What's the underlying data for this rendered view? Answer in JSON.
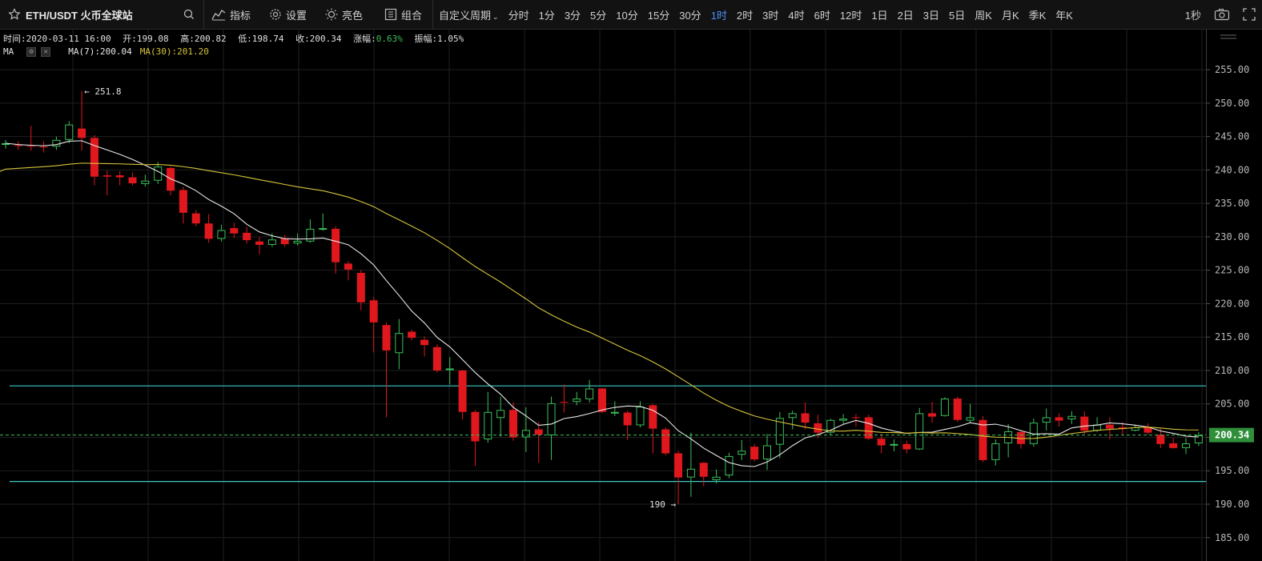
{
  "toolbar": {
    "symbol": "ETH/USDT 火币全球站",
    "indicator_label": "指标",
    "settings_label": "设置",
    "bright_label": "亮色",
    "combo_label": "组合",
    "custom_period_label": "自定义周期",
    "intervals": [
      "分时",
      "1分",
      "3分",
      "5分",
      "10分",
      "15分",
      "30分",
      "1时",
      "2时",
      "3时",
      "4时",
      "6时",
      "12时",
      "1日",
      "2日",
      "3日",
      "5日",
      "周K",
      "月K",
      "季K",
      "年K"
    ],
    "active_interval": "1时",
    "refresh_label": "1秒"
  },
  "info": {
    "time": "时间:2020-03-11 16:00",
    "open": "开:199.08",
    "high": "高:200.82",
    "low": "低:198.74",
    "close": "收:200.34",
    "change_label": "涨幅:",
    "change_value": "0.63%",
    "amplitude": "振幅:1.05%"
  },
  "ma_legend": {
    "label": "MA",
    "ma7": "MA(7):200.04",
    "ma30": "MA(30):201.20"
  },
  "colors": {
    "up": "#3bbf5a",
    "down": "#e0181e",
    "ma7": "#e8e8e8",
    "ma30": "#d6c43a",
    "hline": "#3ec9c9",
    "grid": "#1f1f1f",
    "price_tag": "#2f8f3a"
  },
  "chart_data": {
    "type": "candlestick",
    "yticks": [
      185,
      190,
      195,
      200,
      205,
      210,
      215,
      220,
      225,
      230,
      235,
      240,
      245,
      250,
      255
    ],
    "ylim": [
      181.5,
      261.0
    ],
    "last_price": "200.34",
    "high_marker": "251.8",
    "low_marker": "190",
    "horizontal_lines": [
      207.7,
      193.4
    ],
    "candles": [
      [
        243.8,
        244.0,
        244.5,
        243.2
      ],
      [
        243.7,
        243.6,
        244.3,
        243.0
      ],
      [
        243.6,
        243.5,
        246.6,
        242.9
      ],
      [
        243.5,
        243.4,
        244.3,
        242.6
      ],
      [
        243.5,
        244.5,
        245.0,
        243.0
      ],
      [
        244.5,
        246.8,
        247.3,
        244.0
      ],
      [
        246.2,
        244.8,
        251.8,
        242.9
      ],
      [
        244.8,
        239.0,
        245.2,
        237.7
      ],
      [
        239.2,
        239.0,
        239.9,
        236.2
      ],
      [
        239.2,
        238.9,
        239.8,
        237.7
      ],
      [
        238.9,
        238.0,
        239.6,
        237.7
      ],
      [
        237.9,
        238.4,
        239.3,
        237.5
      ],
      [
        238.4,
        240.5,
        241.2,
        237.9
      ],
      [
        240.3,
        236.9,
        240.5,
        236.2
      ],
      [
        237.0,
        233.6,
        237.5,
        232.0
      ],
      [
        233.5,
        232.0,
        234.0,
        231.6
      ],
      [
        232.0,
        229.7,
        233.4,
        229.1
      ],
      [
        229.7,
        231.0,
        231.8,
        229.3
      ],
      [
        231.3,
        230.5,
        232.1,
        229.8
      ],
      [
        230.6,
        229.5,
        231.5,
        229.0
      ],
      [
        229.3,
        228.8,
        230.0,
        227.4
      ],
      [
        228.8,
        229.6,
        230.5,
        228.5
      ],
      [
        229.8,
        228.9,
        230.3,
        228.5
      ],
      [
        229.0,
        229.4,
        230.5,
        228.7
      ],
      [
        229.3,
        231.2,
        232.6,
        229.1
      ],
      [
        231.3,
        231.3,
        233.5,
        230.9
      ],
      [
        231.2,
        226.2,
        231.6,
        224.5
      ],
      [
        226.0,
        225.1,
        226.4,
        223.5
      ],
      [
        224.6,
        220.2,
        225.0,
        219.0
      ],
      [
        220.5,
        217.2,
        221.0,
        212.7
      ],
      [
        216.8,
        213.0,
        217.2,
        203.0
      ],
      [
        212.6,
        215.6,
        217.7,
        210.2
      ],
      [
        215.8,
        214.9,
        216.1,
        214.5
      ],
      [
        214.6,
        213.8,
        215.1,
        212.1
      ],
      [
        213.5,
        210.0,
        213.9,
        209.7
      ],
      [
        210.1,
        210.3,
        212.0,
        207.9
      ],
      [
        210.0,
        203.8,
        210.1,
        202.7
      ],
      [
        203.8,
        199.4,
        204.1,
        195.7
      ],
      [
        199.7,
        203.8,
        206.8,
        199.2
      ],
      [
        202.9,
        204.1,
        206.1,
        200.1
      ],
      [
        204.1,
        200.0,
        205.2,
        199.5
      ],
      [
        200.0,
        201.1,
        204.5,
        197.8
      ],
      [
        201.2,
        200.4,
        202.3,
        196.2
      ],
      [
        200.3,
        205.1,
        206.1,
        196.6
      ],
      [
        205.3,
        205.2,
        207.9,
        203.7
      ],
      [
        205.3,
        205.8,
        206.8,
        204.8
      ],
      [
        205.7,
        207.3,
        208.6,
        205.2
      ],
      [
        207.3,
        203.8,
        207.4,
        203.6
      ],
      [
        203.7,
        203.8,
        205.4,
        203.2
      ],
      [
        203.7,
        201.8,
        204.0,
        199.6
      ],
      [
        201.8,
        204.6,
        205.4,
        201.5
      ],
      [
        204.8,
        201.3,
        205.0,
        197.6
      ],
      [
        201.2,
        197.6,
        201.5,
        197.3
      ],
      [
        197.6,
        194.0,
        198.0,
        190.0
      ],
      [
        194.0,
        195.3,
        200.7,
        191.1
      ],
      [
        196.2,
        194.1,
        196.3,
        192.7
      ],
      [
        193.6,
        194.1,
        195.2,
        193.1
      ],
      [
        194.3,
        197.2,
        197.7,
        193.9
      ],
      [
        197.4,
        198.0,
        199.6,
        196.6
      ],
      [
        198.6,
        196.7,
        199.0,
        196.4
      ],
      [
        196.7,
        198.8,
        200.5,
        195.1
      ],
      [
        198.9,
        202.9,
        203.8,
        196.9
      ],
      [
        202.9,
        203.6,
        204.0,
        201.2
      ],
      [
        203.6,
        202.2,
        205.2,
        201.2
      ],
      [
        202.1,
        200.7,
        203.4,
        199.9
      ],
      [
        200.7,
        202.6,
        202.8,
        200.3
      ],
      [
        202.5,
        202.8,
        203.5,
        201.9
      ],
      [
        203.0,
        202.9,
        203.5,
        201.6
      ],
      [
        203.0,
        199.8,
        203.4,
        199.6
      ],
      [
        199.8,
        198.8,
        200.5,
        197.6
      ],
      [
        198.8,
        199.0,
        199.7,
        197.9
      ],
      [
        199.0,
        198.2,
        199.5,
        197.6
      ],
      [
        198.2,
        203.6,
        204.4,
        198.1
      ],
      [
        203.6,
        203.1,
        205.3,
        202.2
      ],
      [
        203.2,
        205.8,
        206.0,
        203.1
      ],
      [
        205.8,
        202.6,
        206.1,
        202.3
      ],
      [
        202.5,
        203.0,
        205.0,
        202.1
      ],
      [
        202.6,
        196.6,
        203.2,
        196.3
      ],
      [
        196.6,
        199.1,
        199.7,
        195.8
      ],
      [
        199.1,
        200.9,
        202.0,
        197.0
      ],
      [
        200.8,
        199.0,
        201.1,
        198.3
      ],
      [
        199.0,
        202.2,
        202.8,
        198.6
      ],
      [
        202.2,
        203.0,
        204.3,
        201.0
      ],
      [
        203.0,
        202.5,
        203.6,
        201.6
      ],
      [
        202.7,
        203.2,
        203.9,
        202.0
      ],
      [
        203.1,
        201.0,
        203.9,
        200.5
      ],
      [
        201.0,
        201.9,
        203.0,
        200.8
      ],
      [
        201.9,
        201.3,
        203.0,
        199.7
      ],
      [
        201.5,
        201.3,
        202.3,
        200.4
      ],
      [
        201.0,
        201.5,
        201.9,
        200.9
      ],
      [
        201.5,
        200.7,
        202.1,
        200.4
      ],
      [
        200.4,
        199.0,
        201.3,
        198.4
      ],
      [
        199.1,
        198.4,
        199.9,
        198.3
      ],
      [
        198.4,
        199.1,
        199.9,
        197.5
      ],
      [
        199.1,
        200.3,
        200.8,
        198.7
      ]
    ]
  }
}
